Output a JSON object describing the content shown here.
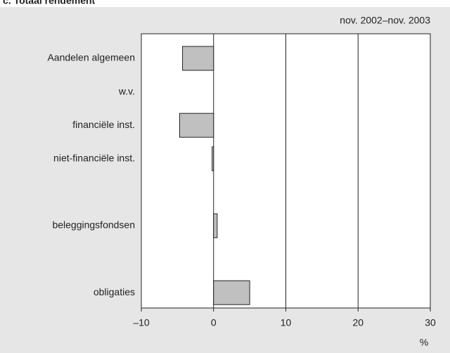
{
  "chart_data": {
    "type": "hbar",
    "title": "c. Totaal rendement",
    "subtitle": "nov. 2002–nov. 2003",
    "x_label": "%",
    "categories": [
      "Aandelen algemeen",
      "w.v.",
      "financiële inst.",
      "niet-financiële inst.",
      null,
      "beleggingsfondsen",
      null,
      "obligaties"
    ],
    "values": [
      -4.3,
      null,
      -4.7,
      -0.2,
      null,
      0.5,
      null,
      5.0
    ],
    "color": "#c0c0c0",
    "xlim": [
      -10,
      30
    ],
    "xticks": [
      {
        "value": -10,
        "label": "–10"
      },
      0,
      10,
      20,
      30
    ],
    "grid": true
  }
}
